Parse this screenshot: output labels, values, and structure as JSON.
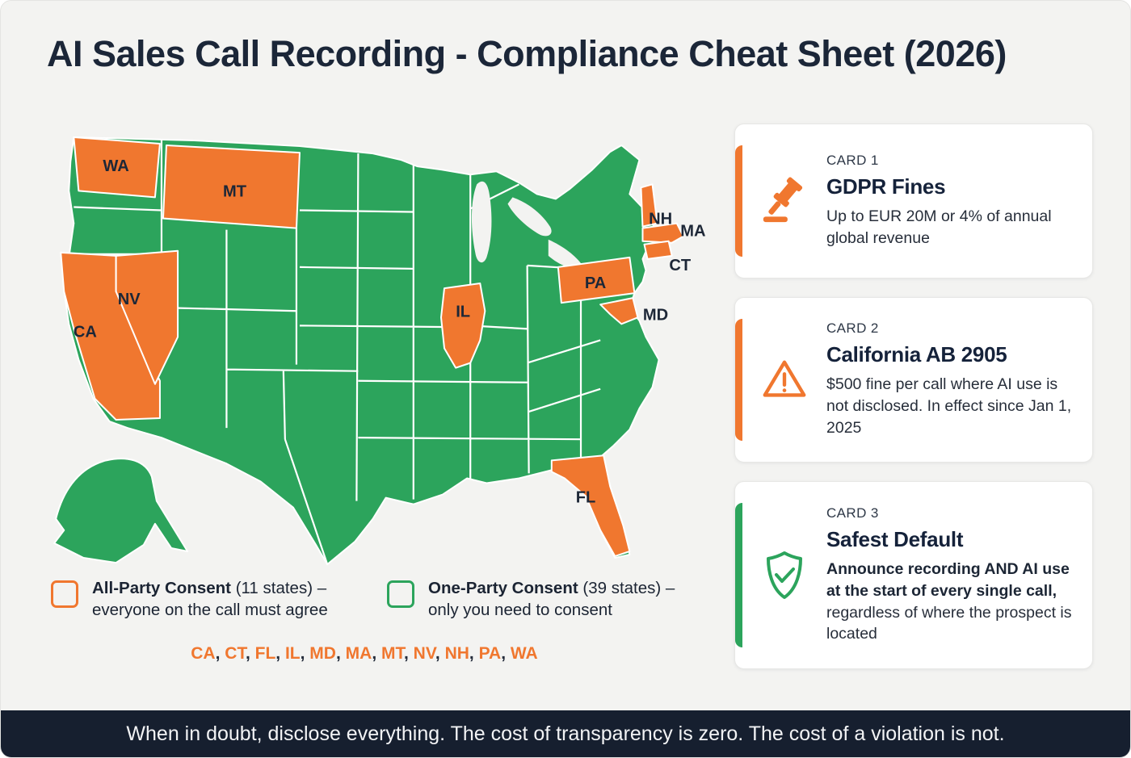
{
  "title": "AI Sales Call Recording - Compliance Cheat Sheet (2026)",
  "map": {
    "labels": {
      "wa": "WA",
      "mt": "MT",
      "nv": "NV",
      "ca": "CA",
      "il": "IL",
      "pa": "PA",
      "nh": "NH",
      "ma": "MA",
      "ct": "CT",
      "md": "MD",
      "fl": "FL"
    }
  },
  "legend": {
    "all_party": {
      "bold": "All-Party Consent",
      "line1_rest": " (11 states) –",
      "line2": "everyone on the call must agree"
    },
    "one_party": {
      "bold": "One-Party Consent",
      "line1_rest": " (39 states) –",
      "line2": "only you need to consent"
    },
    "states": [
      "CA",
      "CT",
      "FL",
      "IL",
      "MD",
      "MA",
      "MT",
      "NV",
      "NH",
      "PA",
      "WA"
    ]
  },
  "cards": [
    {
      "kicker": "CARD 1",
      "title": "GDPR Fines",
      "body": "Up to EUR 20M or 4% of annual global revenue"
    },
    {
      "kicker": "CARD 2",
      "title": "California AB 2905",
      "body": "$500 fine per call where AI use is not disclosed. In effect since Jan 1, 2025"
    },
    {
      "kicker": "CARD 3",
      "title": "Safest Default",
      "body_bold": "Announce recording AND AI use at the start of every single call,",
      "body_rest": " regardless of where the prospect is located"
    }
  ],
  "footer": "When in doubt, disclose everything. The cost of transparency is zero. The cost of a violation is not.",
  "colors": {
    "orange": "#F0772F",
    "green": "#2CA45C",
    "navy": "#161F2F"
  }
}
